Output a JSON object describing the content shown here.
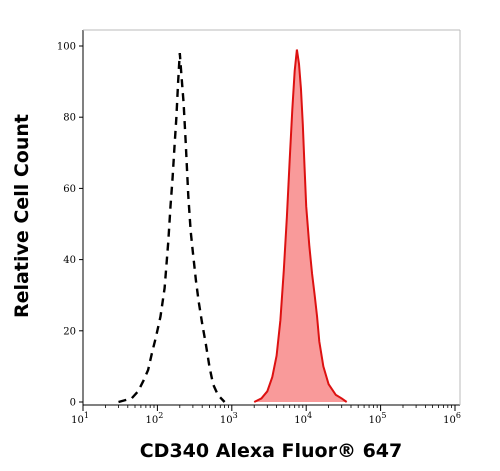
{
  "chart_data": {
    "type": "area",
    "title": "",
    "xlabel": "CD340 Alexa Fluor® 647",
    "ylabel": "Relative Cell Count",
    "xscale": "log",
    "xlim": [
      10,
      1000000
    ],
    "ylim": [
      0,
      100
    ],
    "grid": false,
    "legend": "none",
    "x_ticks": [
      {
        "value": 10,
        "base": "10",
        "exp": "1"
      },
      {
        "value": 100,
        "base": "10",
        "exp": "2"
      },
      {
        "value": 1000,
        "base": "10",
        "exp": "3"
      },
      {
        "value": 10000,
        "base": "10",
        "exp": "4"
      },
      {
        "value": 100000,
        "base": "10",
        "exp": "5"
      },
      {
        "value": 1000000,
        "base": "10",
        "exp": "6"
      }
    ],
    "y_ticks": [
      0,
      20,
      40,
      60,
      80,
      100
    ],
    "series": [
      {
        "style": "dashed",
        "color": "#000000",
        "points": [
          [
            30,
            0
          ],
          [
            45,
            1
          ],
          [
            55,
            3
          ],
          [
            65,
            6
          ],
          [
            75,
            9
          ],
          [
            85,
            14
          ],
          [
            95,
            18
          ],
          [
            110,
            24
          ],
          [
            125,
            32
          ],
          [
            140,
            45
          ],
          [
            150,
            55
          ],
          [
            160,
            63
          ],
          [
            170,
            72
          ],
          [
            180,
            80
          ],
          [
            190,
            90
          ],
          [
            200,
            98
          ],
          [
            210,
            92
          ],
          [
            225,
            84
          ],
          [
            240,
            73
          ],
          [
            260,
            58
          ],
          [
            280,
            48
          ],
          [
            300,
            42
          ],
          [
            330,
            34
          ],
          [
            360,
            28
          ],
          [
            400,
            22
          ],
          [
            450,
            16
          ],
          [
            500,
            10
          ],
          [
            560,
            5
          ],
          [
            650,
            2
          ],
          [
            800,
            0
          ]
        ]
      },
      {
        "style": "filled",
        "color": "#dd1111",
        "fill": "#f99a9a",
        "points": [
          [
            2000,
            0
          ],
          [
            2500,
            1
          ],
          [
            3000,
            3
          ],
          [
            3500,
            7
          ],
          [
            4000,
            13
          ],
          [
            4500,
            23
          ],
          [
            5000,
            37
          ],
          [
            5500,
            52
          ],
          [
            6000,
            68
          ],
          [
            6500,
            82
          ],
          [
            7000,
            93
          ],
          [
            7500,
            99
          ],
          [
            8000,
            95
          ],
          [
            8500,
            88
          ],
          [
            9000,
            78
          ],
          [
            9500,
            66
          ],
          [
            10000,
            55
          ],
          [
            11000,
            44
          ],
          [
            12000,
            36
          ],
          [
            13000,
            30
          ],
          [
            14000,
            24
          ],
          [
            15000,
            17
          ],
          [
            17000,
            10
          ],
          [
            20000,
            5
          ],
          [
            25000,
            2
          ],
          [
            30000,
            1
          ],
          [
            35000,
            0
          ]
        ]
      }
    ]
  }
}
